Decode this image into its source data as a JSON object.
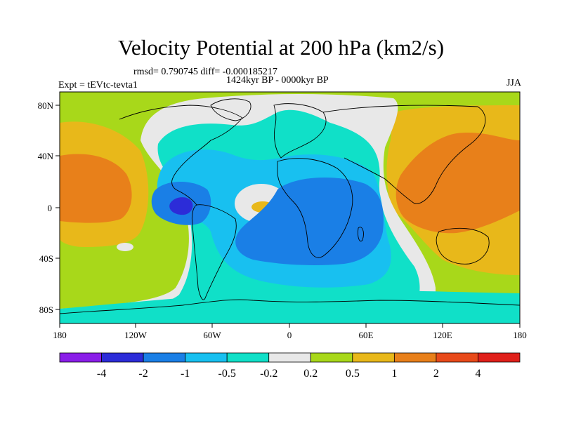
{
  "header": {
    "title": "Velocity Potential at 200 hPa (km2/s)",
    "stats": "rmsd= 0.790745 diff= -0.000185217",
    "period": "1424kyr BP - 0000kyr BP",
    "experiment": "Expt = tEVtc-tevta1",
    "season": "JJA"
  },
  "map": {
    "x_ticks": [
      "180",
      "120W",
      "60W",
      "0",
      "60E",
      "120E",
      "180"
    ],
    "y_ticks": [
      "80N",
      "40N",
      "0",
      "40S",
      "80S"
    ]
  },
  "colorbar": {
    "labels": [
      "-4",
      "-2",
      "-1",
      "-0.5",
      "-0.2",
      "0.2",
      "0.5",
      "1",
      "2",
      "4"
    ],
    "colors": [
      "#8a1ee8",
      "#2c2cd8",
      "#1a7fe6",
      "#18c0f0",
      "#10e0c8",
      "#e8e8e8",
      "#a8d81a",
      "#e8b81a",
      "#e8801a",
      "#e84a1a",
      "#e0201a"
    ]
  },
  "colors": {
    "neg_strong": "#2c2cd8",
    "neg_mid": "#1a7fe6",
    "neg_weak": "#18c0f0",
    "neg_faint": "#10e0c8",
    "neutral": "#e8e8e8",
    "pos_faint": "#a8d81a",
    "pos_weak": "#e8b81a",
    "pos_mid": "#e8801a"
  }
}
